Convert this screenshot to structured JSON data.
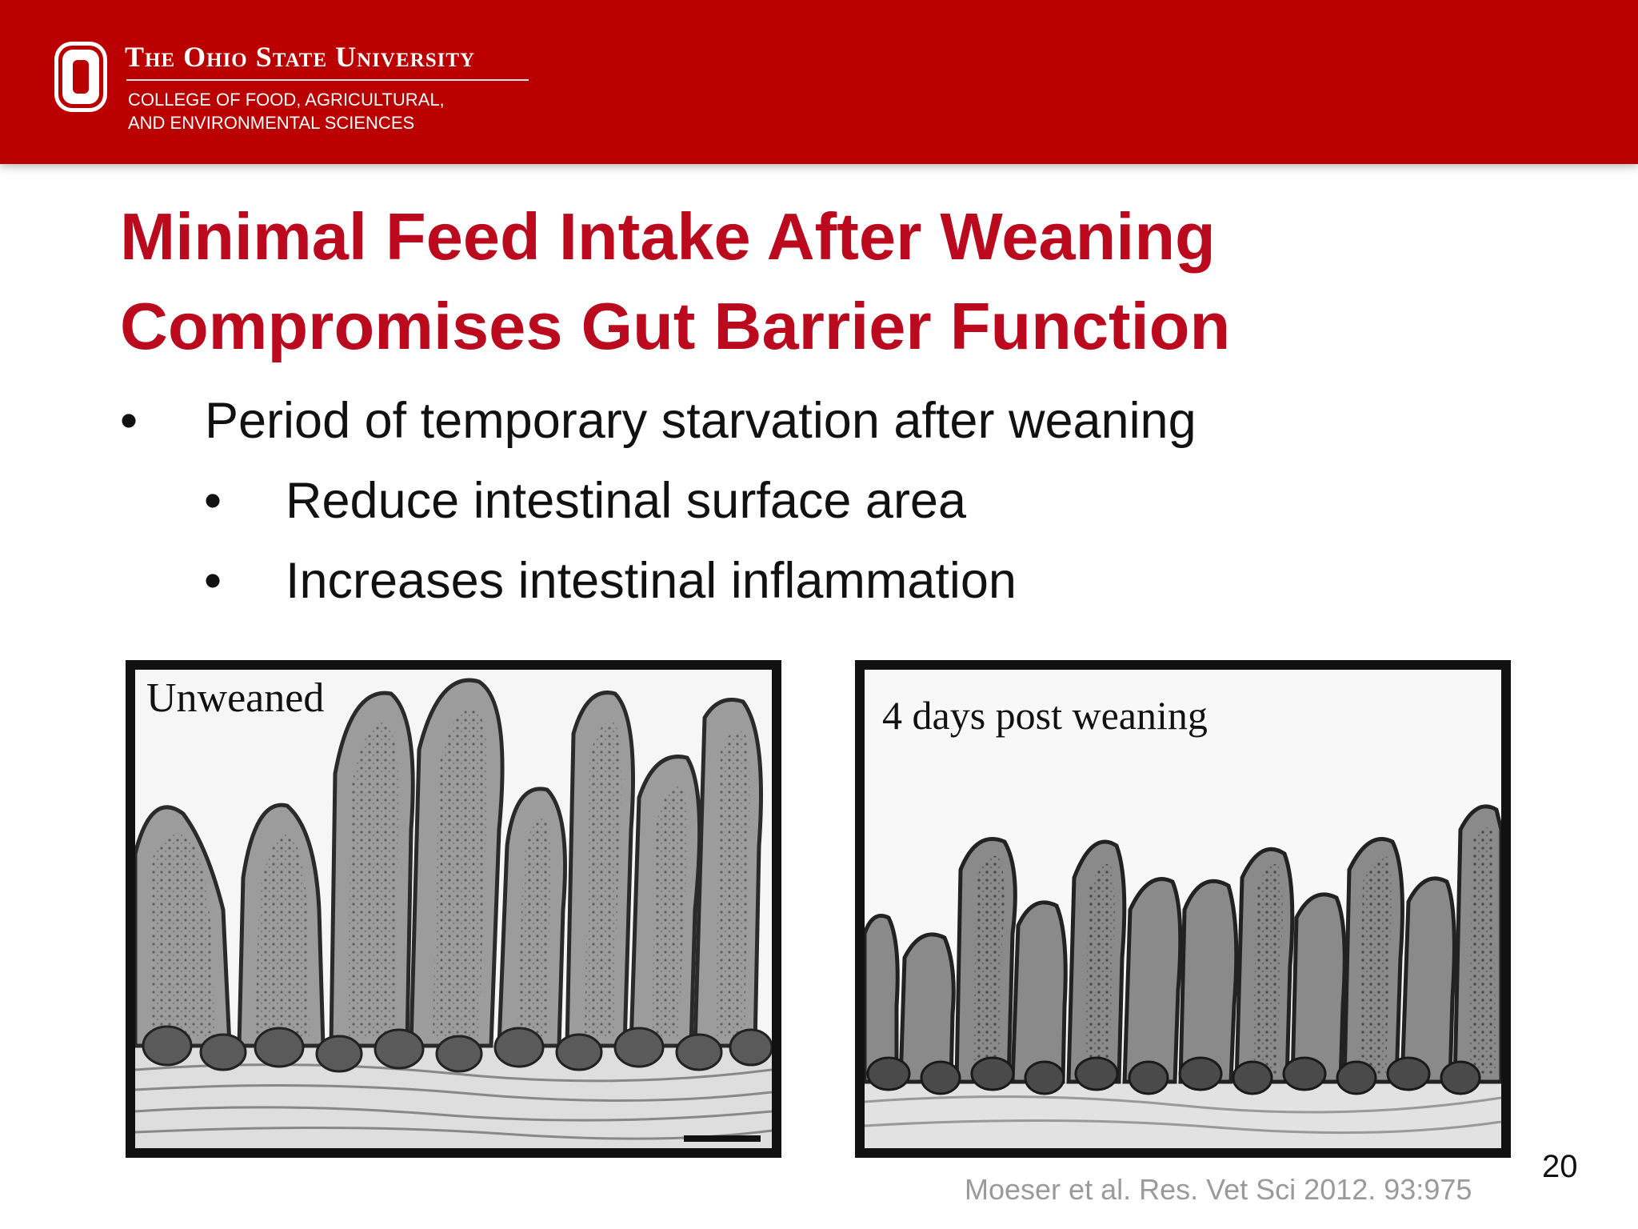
{
  "header": {
    "university": "The Ohio State University",
    "college_line1": "College of Food, Agricultural,",
    "college_line2": "and Environmental Sciences",
    "background_color": "#bb0000",
    "logo_icon": "block-o-logo"
  },
  "slide": {
    "title_line1": "Minimal Feed Intake After Weaning",
    "title_line2": "Compromises Gut Barrier Function",
    "title_color": "#bb0a1e",
    "bullets": [
      {
        "marker": "•",
        "text": "Period of temporary starvation after weaning"
      },
      {
        "marker": "•",
        "text": "Reduce intestinal surface area"
      },
      {
        "marker": "•",
        "text": "Increases intestinal inflammation"
      }
    ],
    "images": [
      {
        "label": "Unweaned"
      },
      {
        "label": "4 days post weaning"
      }
    ],
    "citation": "Moeser et al. Res. Vet Sci 2012. 93:975",
    "page_number": "20"
  }
}
